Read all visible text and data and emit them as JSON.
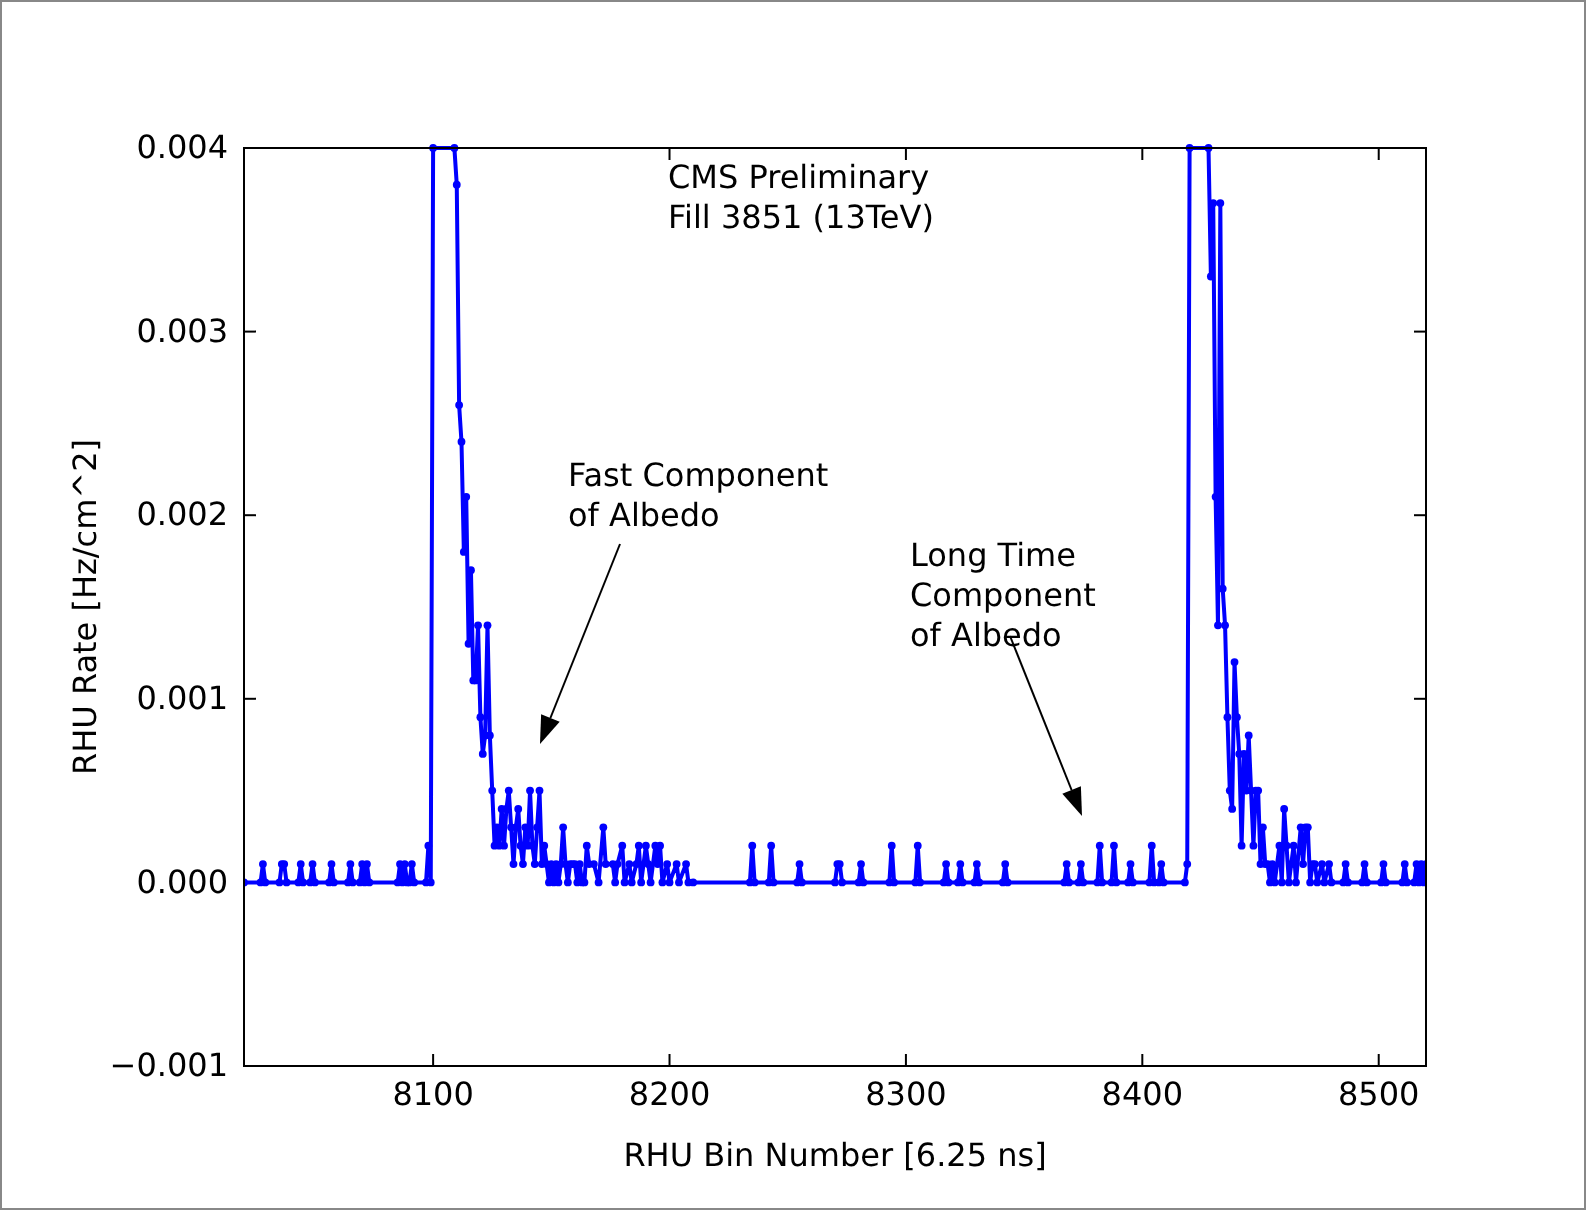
{
  "chart_data": {
    "type": "line",
    "xlabel": "RHU Bin Number [6.25 ns]",
    "ylabel": "RHU Rate [Hz/cm^2]",
    "xlim": [
      8020,
      8520
    ],
    "xticks": [
      8100,
      8200,
      8300,
      8400,
      8500
    ],
    "ylim": [
      -0.001,
      0.004
    ],
    "yticks": [
      {
        "value": -0.001,
        "label": "−0.001"
      },
      {
        "value": 0,
        "label": "0.000"
      },
      {
        "value": 0.001,
        "label": "0.001"
      },
      {
        "value": 0.002,
        "label": "0.002"
      },
      {
        "value": 0.003,
        "label": "0.003"
      },
      {
        "value": 0.004,
        "label": "0.004"
      }
    ],
    "grid": false,
    "marker": "circle",
    "line_style": "solid",
    "annotations": [
      "CMS Preliminary\nFill 3851 (13TeV)",
      "Fast Component\nof Albedo",
      "Long Time\nComponent\nof Albedo"
    ],
    "series": [
      {
        "color": "#0000ff",
        "x": [
          8020,
          8027,
          8028,
          8029,
          8035,
          8036,
          8037,
          8038,
          8043,
          8044,
          8045,
          8048,
          8049,
          8050,
          8056,
          8057,
          8058,
          8064,
          8065,
          8066,
          8069,
          8070,
          8071,
          8072,
          8073,
          8085,
          8086,
          8087,
          8088,
          8089,
          8090,
          8091,
          8092,
          8097,
          8098,
          8099,
          8100,
          8109,
          8110,
          8111,
          8112,
          8113,
          8114,
          8115,
          8116,
          8117,
          8118,
          8119,
          8120,
          8121,
          8122,
          8123,
          8124,
          8125,
          8126,
          8127,
          8128,
          8129,
          8130,
          8131,
          8132,
          8133,
          8134,
          8135,
          8136,
          8137,
          8138,
          8139,
          8140,
          8141,
          8142,
          8143,
          8144,
          8145,
          8146,
          8147,
          8148,
          8149,
          8150,
          8151,
          8152,
          8153,
          8154,
          8155,
          8156,
          8157,
          8158,
          8159,
          8160,
          8161,
          8162,
          8163,
          8164,
          8165,
          8166,
          8168,
          8170,
          8172,
          8173,
          8176,
          8177,
          8178,
          8180,
          8181,
          8183,
          8184,
          8186,
          8187,
          8188,
          8190,
          8191,
          8192,
          8194,
          8195,
          8196,
          8197,
          8199,
          8200,
          8203,
          8204,
          8207,
          8208,
          8210,
          8234,
          8235,
          8236,
          8242,
          8243,
          8244,
          8254,
          8255,
          8256,
          8270,
          8271,
          8272,
          8273,
          8280,
          8281,
          8282,
          8293,
          8294,
          8295,
          8304,
          8305,
          8306,
          8316,
          8317,
          8318,
          8322,
          8323,
          8324,
          8329,
          8330,
          8331,
          8341,
          8342,
          8343,
          8367,
          8368,
          8369,
          8373,
          8374,
          8375,
          8381,
          8382,
          8383,
          8387,
          8388,
          8389,
          8394,
          8395,
          8396,
          8403,
          8404,
          8405,
          8407,
          8408,
          8409,
          8418,
          8419,
          8420,
          8428,
          8429,
          8430,
          8431,
          8432,
          8433,
          8434,
          8435,
          8436,
          8437,
          8438,
          8439,
          8440,
          8441,
          8442,
          8443,
          8444,
          8445,
          8446,
          8447,
          8448,
          8449,
          8450,
          8451,
          8452,
          8453,
          8454,
          8455,
          8456,
          8458,
          8459,
          8460,
          8461,
          8462,
          8463,
          8464,
          8465,
          8467,
          8468,
          8469,
          8470,
          8471,
          8472,
          8473,
          8474,
          8476,
          8477,
          8479,
          8480,
          8485,
          8486,
          8487,
          8493,
          8494,
          8495,
          8501,
          8502,
          8503,
          8510,
          8511,
          8512,
          8515,
          8516,
          8517,
          8518,
          8519,
          8520
        ],
        "values": [
          0,
          0,
          0.0001,
          0,
          0,
          0.0001,
          0.0001,
          0,
          0,
          0.0001,
          0,
          0,
          0.0001,
          0,
          0,
          0.0001,
          0,
          0,
          0.0001,
          0,
          0,
          0.0001,
          0,
          0.0001,
          0,
          0,
          0.0001,
          0,
          0.0001,
          0,
          0,
          0.0001,
          0,
          0,
          0.0002,
          0,
          0.004,
          0.004,
          0.0038,
          0.0026,
          0.0024,
          0.0018,
          0.0021,
          0.0013,
          0.0017,
          0.0011,
          0.0011,
          0.0014,
          0.0009,
          0.0007,
          0.0008,
          0.0014,
          0.0008,
          0.0005,
          0.0002,
          0.0003,
          0.0002,
          0.0004,
          0.0002,
          0.0004,
          0.0005,
          0.0003,
          0.0001,
          0.0003,
          0.0004,
          0.0002,
          0.0001,
          0.0003,
          0.0002,
          0.0005,
          0.0002,
          0.0001,
          0.0003,
          0.0005,
          0.0001,
          0.0002,
          0.0001,
          0,
          0.0001,
          0,
          0.0001,
          0,
          0.0001,
          0.0003,
          0.0001,
          0,
          0.0001,
          0.0001,
          0.0001,
          0,
          0.0001,
          0,
          0,
          0.0002,
          0.0001,
          0.0001,
          0,
          0.0003,
          0.0001,
          0.0001,
          0,
          0.0001,
          0.0002,
          0,
          0.0001,
          0,
          0.0001,
          0.0002,
          0,
          0.0002,
          0.0001,
          0,
          0.0002,
          0.0001,
          0.0002,
          0,
          0.0001,
          0,
          0.0001,
          0,
          0.0001,
          0,
          0,
          0,
          0.0002,
          0,
          0,
          0.0002,
          0,
          0,
          0.0001,
          0,
          0,
          0.0001,
          0.0001,
          0,
          0,
          0.0001,
          0,
          0,
          0.0002,
          0,
          0,
          0.0002,
          0,
          0,
          0.0001,
          0,
          0,
          0.0001,
          0,
          0,
          0.0001,
          0,
          0,
          0.0001,
          0,
          0,
          0.0001,
          0,
          0,
          0.0001,
          0,
          0,
          0.0002,
          0,
          0,
          0.0002,
          0,
          0,
          0.0001,
          0,
          0,
          0.0002,
          0,
          0,
          0.0001,
          0,
          0,
          0.0001,
          0.004,
          0.004,
          0.0033,
          0.0037,
          0.0021,
          0.0014,
          0.0037,
          0.0016,
          0.0014,
          0.0009,
          0.0005,
          0.0004,
          0.0012,
          0.0009,
          0.0007,
          0.0002,
          0.0007,
          0.0005,
          0.0008,
          0.0005,
          0.0002,
          0.0005,
          0.0005,
          0.0001,
          0.0003,
          0.0001,
          0.0001,
          0,
          0.0001,
          0,
          0.0002,
          0,
          0.0004,
          0.0002,
          0,
          0.0001,
          0.0002,
          0,
          0.0003,
          0.0001,
          0.0003,
          0.0003,
          0,
          0.0001,
          0.0001,
          0,
          0.0001,
          0,
          0.0001,
          0,
          0,
          0.0001,
          0,
          0,
          0.0001,
          0,
          0,
          0.0001,
          0,
          0,
          0.0001,
          0,
          0,
          0.0001,
          0,
          0.0001,
          0,
          0.0001
        ]
      }
    ]
  }
}
